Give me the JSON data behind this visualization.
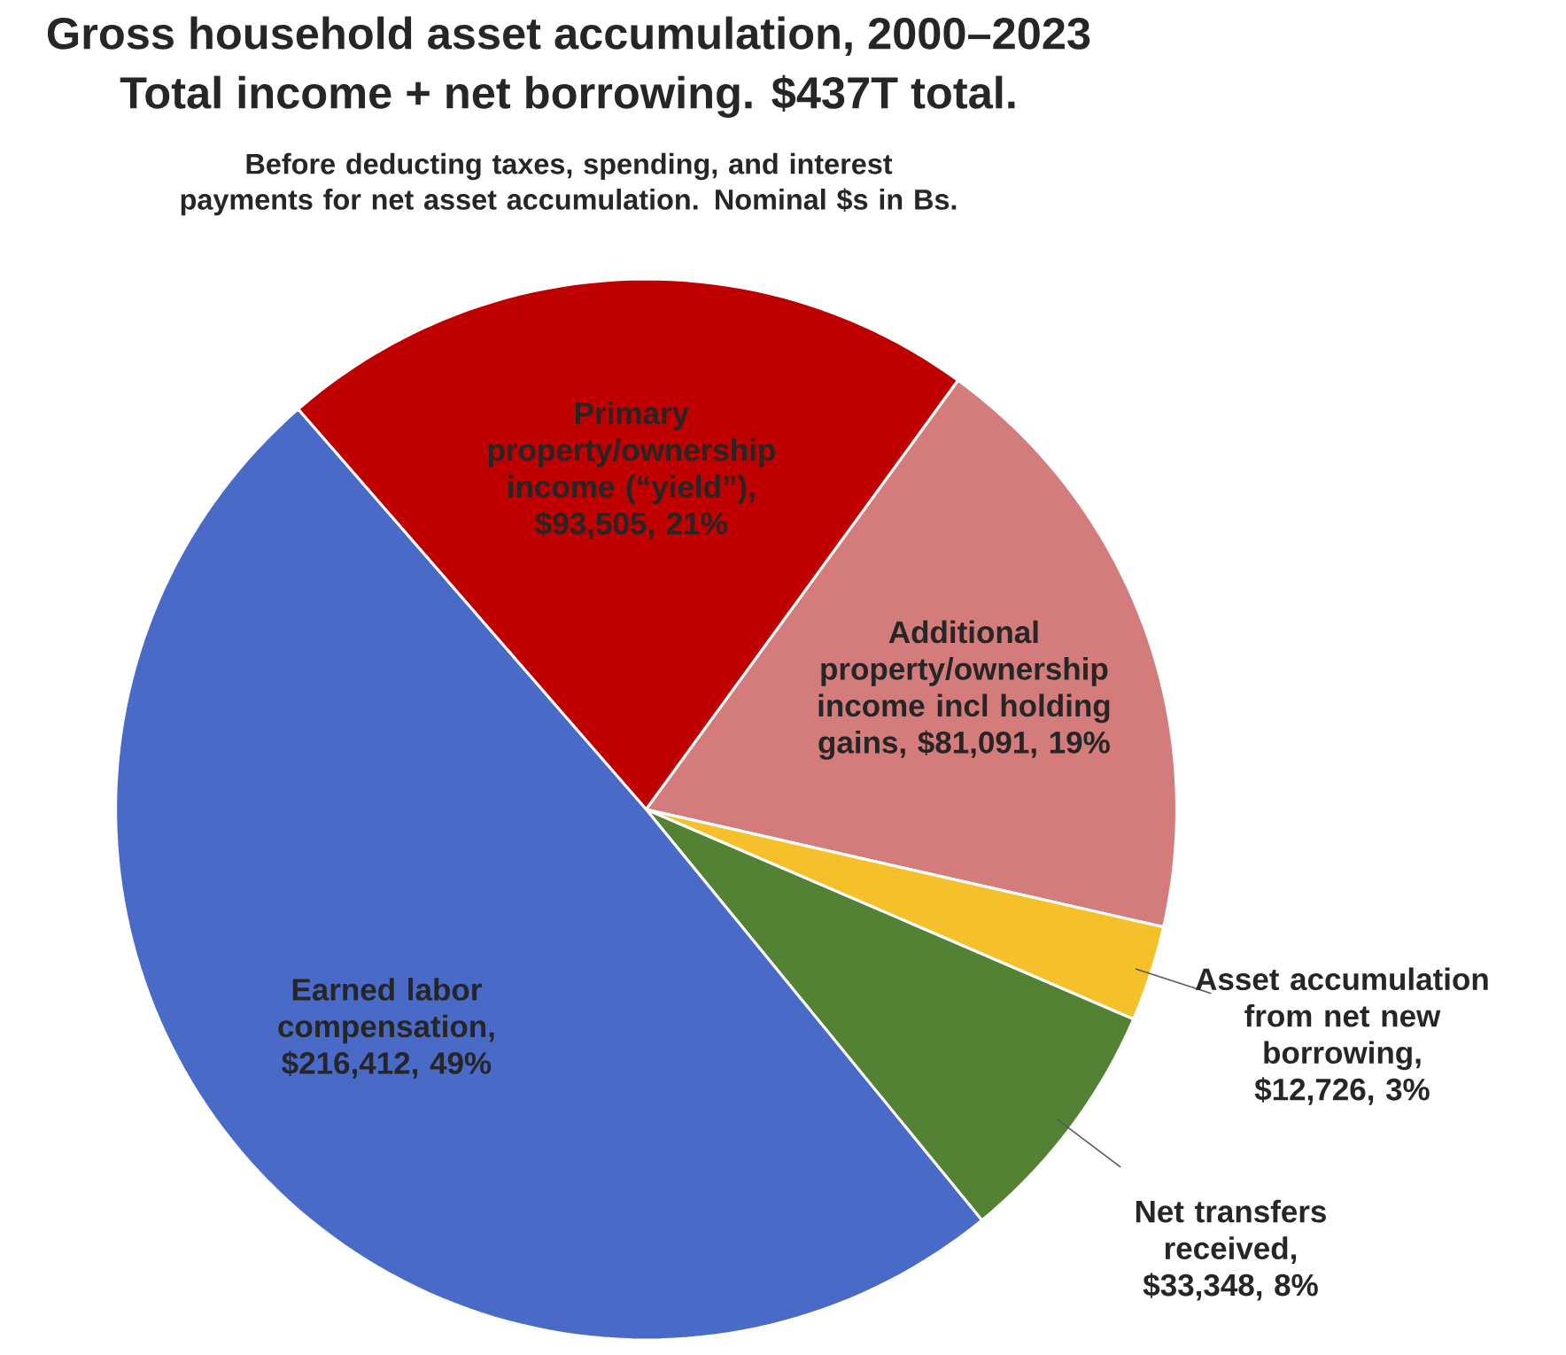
{
  "chart_data": {
    "type": "pie",
    "title": "Gross household asset accumulation, 2000–2023",
    "subtitle": "Total income + net borrowing. $437T total.",
    "annotations": [
      "Before deducting taxes, spending, and interest payments for net asset accumulation. Nominal $s in Bs."
    ],
    "categories": [
      "Primary property/ownership income (“yield”), $93,505, 21%",
      "Additional property/ownership income incl holding gains, $81,091, 19%",
      "Asset accumulation from net new borrowing, $12,726, 3%",
      "Net transfers received, $33,348, 8%",
      "Earned labor compensation, $216,412, 49%"
    ],
    "values": [
      93505,
      81091,
      12726,
      33348,
      216412
    ],
    "colors": [
      "#c00000",
      "#d47b7b",
      "#f5c02a",
      "#548235",
      "#4a6ac8"
    ]
  }
}
